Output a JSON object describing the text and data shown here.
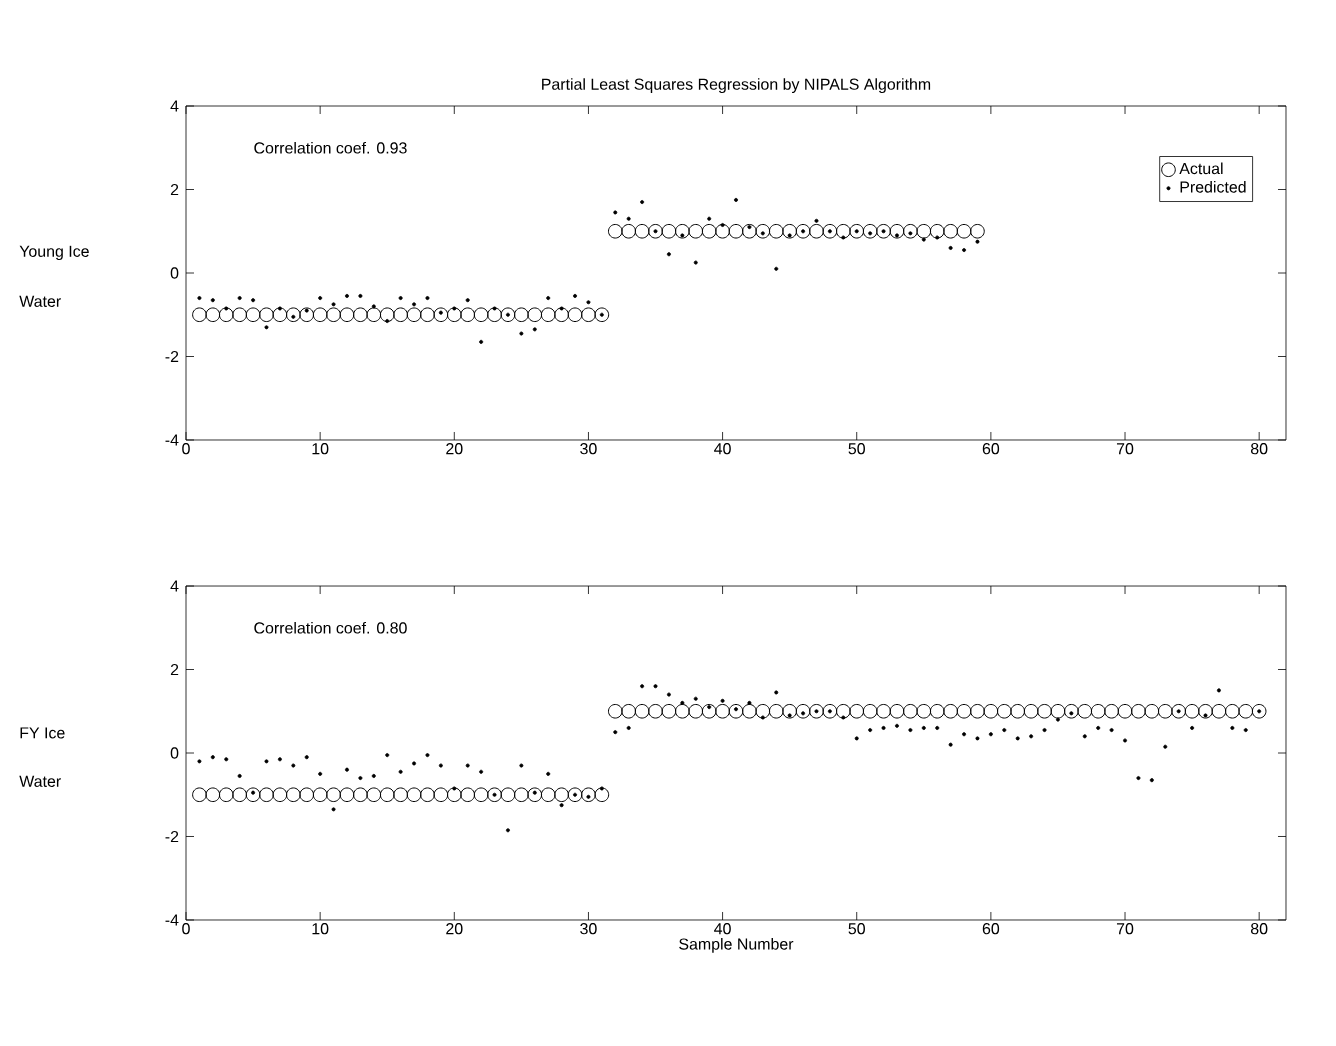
{
  "chart_data": [
    {
      "type": "scatter",
      "title": "Partial Least Squares Regression by NIPALS Algorithm",
      "annotations": [
        "Correlation coef. 0.93",
        "Young Ice",
        "Water"
      ],
      "x": [
        1,
        2,
        3,
        4,
        5,
        6,
        7,
        8,
        9,
        10,
        11,
        12,
        13,
        14,
        15,
        16,
        17,
        18,
        19,
        20,
        21,
        22,
        23,
        24,
        25,
        26,
        27,
        28,
        29,
        30,
        31,
        32,
        33,
        34,
        35,
        36,
        37,
        38,
        39,
        40,
        41,
        42,
        43,
        44,
        45,
        46,
        47,
        48,
        49,
        50,
        51,
        52,
        53,
        54,
        55,
        56,
        57,
        58,
        59
      ],
      "series": [
        {
          "name": "Actual",
          "color": "#000000",
          "marker": "circle",
          "values": [
            -1,
            -1,
            -1,
            -1,
            -1,
            -1,
            -1,
            -1,
            -1,
            -1,
            -1,
            -1,
            -1,
            -1,
            -1,
            -1,
            -1,
            -1,
            -1,
            -1,
            -1,
            -1,
            -1,
            -1,
            -1,
            -1,
            -1,
            -1,
            -1,
            -1,
            -1,
            1,
            1,
            1,
            1,
            1,
            1,
            1,
            1,
            1,
            1,
            1,
            1,
            1,
            1,
            1,
            1,
            1,
            1,
            1,
            1,
            1,
            1,
            1,
            1,
            1,
            1,
            1,
            1
          ]
        },
        {
          "name": "Predicted",
          "color": "#000000",
          "marker": "point",
          "values": [
            -0.6,
            -0.65,
            -0.85,
            -0.6,
            -0.65,
            -1.3,
            -0.85,
            -1.05,
            -0.9,
            -0.6,
            -0.75,
            -0.55,
            -0.55,
            -0.8,
            -1.15,
            -0.6,
            -0.75,
            -0.6,
            -0.95,
            -0.85,
            -0.65,
            -1.65,
            -0.85,
            -1.0,
            -1.45,
            -1.35,
            -0.6,
            -0.85,
            -0.55,
            -0.7,
            -1.0,
            1.45,
            1.3,
            1.7,
            1.0,
            0.45,
            0.9,
            0.25,
            1.3,
            1.15,
            1.75,
            1.1,
            0.95,
            0.1,
            0.9,
            1.0,
            1.25,
            1.0,
            0.85,
            1.0,
            0.95,
            1.0,
            0.9,
            0.95,
            0.8,
            0.85,
            0.6,
            0.55,
            0.75
          ]
        }
      ],
      "xlim": [
        0,
        82
      ],
      "xticks": [
        0,
        10,
        20,
        30,
        40,
        50,
        60,
        70,
        80
      ],
      "ylim": [
        -4,
        4
      ],
      "yticks": [
        -4,
        -2,
        0,
        2,
        4
      ],
      "legend": "top right"
    },
    {
      "type": "scatter",
      "xlabel": "Sample Number",
      "annotations": [
        "Correlation coef. 0.80",
        "FY Ice",
        "Water"
      ],
      "x": [
        1,
        2,
        3,
        4,
        5,
        6,
        7,
        8,
        9,
        10,
        11,
        12,
        13,
        14,
        15,
        16,
        17,
        18,
        19,
        20,
        21,
        22,
        23,
        24,
        25,
        26,
        27,
        28,
        29,
        30,
        31,
        32,
        33,
        34,
        35,
        36,
        37,
        38,
        39,
        40,
        41,
        42,
        43,
        44,
        45,
        46,
        47,
        48,
        49,
        50,
        51,
        52,
        53,
        54,
        55,
        56,
        57,
        58,
        59,
        60,
        61,
        62,
        63,
        64,
        65,
        66,
        67,
        68,
        69,
        70,
        71,
        72,
        73,
        74,
        75,
        76,
        77,
        78,
        79,
        80
      ],
      "series": [
        {
          "color": "#000000",
          "marker": "circle",
          "values": [
            -1,
            -1,
            -1,
            -1,
            -1,
            -1,
            -1,
            -1,
            -1,
            -1,
            -1,
            -1,
            -1,
            -1,
            -1,
            -1,
            -1,
            -1,
            -1,
            -1,
            -1,
            -1,
            -1,
            -1,
            -1,
            -1,
            -1,
            -1,
            -1,
            -1,
            -1,
            1,
            1,
            1,
            1,
            1,
            1,
            1,
            1,
            1,
            1,
            1,
            1,
            1,
            1,
            1,
            1,
            1,
            1,
            1,
            1,
            1,
            1,
            1,
            1,
            1,
            1,
            1,
            1,
            1,
            1,
            1,
            1,
            1,
            1,
            1,
            1,
            1,
            1,
            1,
            1,
            1,
            1,
            1,
            1,
            1,
            1,
            1,
            1,
            1
          ]
        },
        {
          "color": "#000000",
          "marker": "point",
          "values": [
            -0.2,
            -0.1,
            -0.15,
            -0.55,
            -0.95,
            -0.2,
            -0.15,
            -0.3,
            -0.1,
            -0.5,
            -1.35,
            -0.4,
            -0.6,
            -0.55,
            -0.05,
            -0.45,
            -0.25,
            -0.05,
            -0.3,
            -0.85,
            -0.3,
            -0.45,
            -1.0,
            -1.85,
            -0.3,
            -0.95,
            -0.5,
            -1.25,
            -1.0,
            -1.05,
            -0.85,
            0.5,
            0.6,
            1.6,
            1.6,
            1.4,
            1.2,
            1.3,
            1.1,
            1.25,
            1.05,
            1.2,
            0.85,
            1.45,
            0.9,
            0.95,
            1.0,
            1.0,
            0.85,
            0.35,
            0.55,
            0.6,
            0.65,
            0.55,
            0.6,
            0.6,
            0.2,
            0.45,
            0.35,
            0.45,
            0.55,
            0.35,
            0.4,
            0.55,
            0.8,
            0.95,
            0.4,
            0.6,
            0.55,
            0.3,
            -0.6,
            -0.65,
            0.15,
            1.0,
            0.6,
            0.9,
            1.5,
            0.6,
            0.55,
            1.0
          ]
        }
      ],
      "xlim": [
        0,
        82
      ],
      "xticks": [
        0,
        10,
        20,
        30,
        40,
        50,
        60,
        70,
        80
      ],
      "ylim": [
        -4,
        4
      ],
      "yticks": [
        -4,
        -2,
        0,
        2,
        4
      ]
    }
  ]
}
